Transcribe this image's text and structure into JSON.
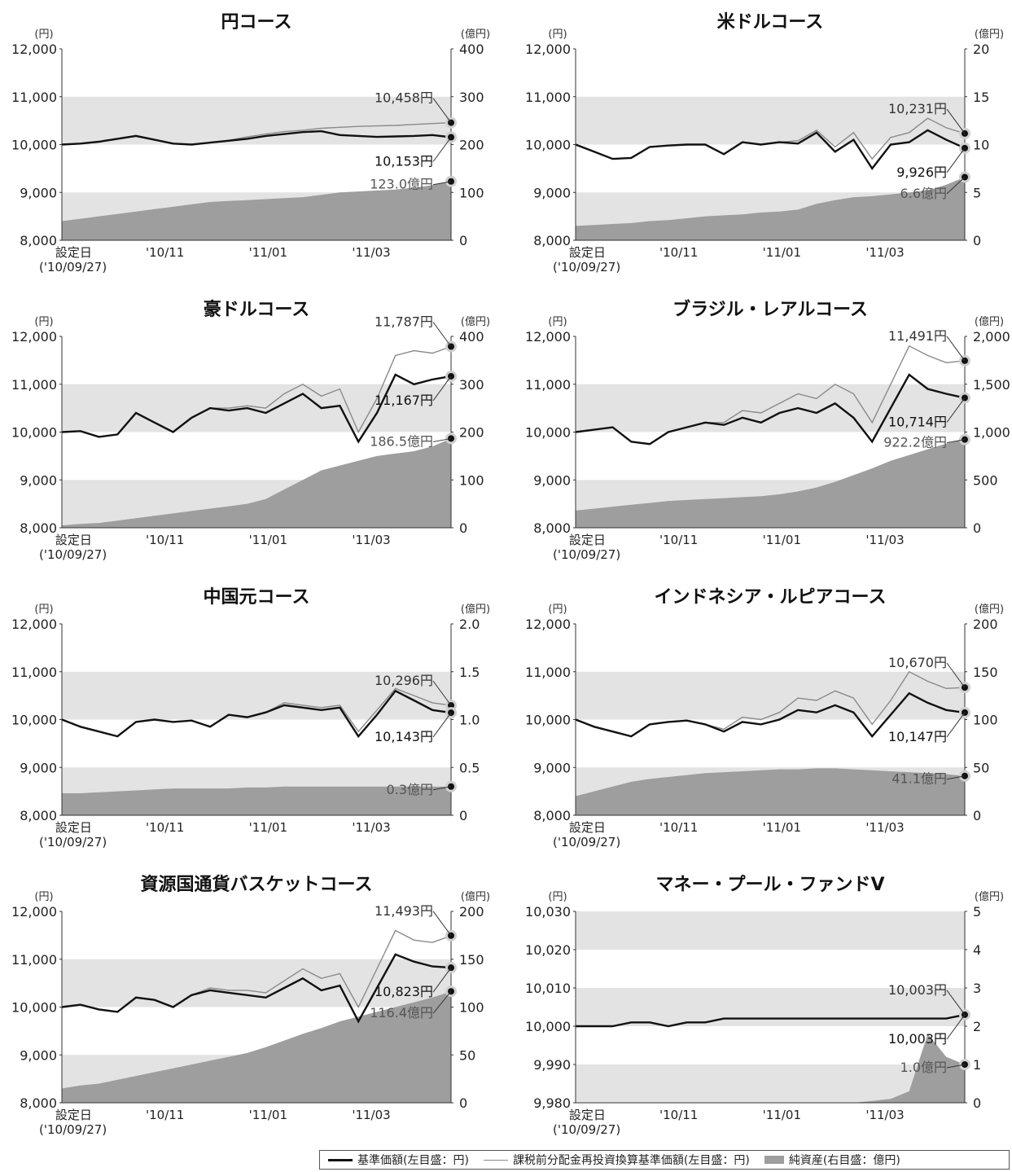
{
  "chart_data": [
    {
      "type": "line",
      "title": "円コース",
      "left_unit": "(円)",
      "right_unit": "(億円)",
      "y_left": {
        "min": 8000,
        "max": 12000,
        "ticks": [
          "8,000",
          "9,000",
          "10,000",
          "11,000",
          "12,000"
        ]
      },
      "y_right": {
        "min": 0,
        "max": 400,
        "ticks": [
          "0",
          "100",
          "200",
          "300",
          "400"
        ]
      },
      "x_labels": [
        "設定日",
        "'10/11",
        "'11/01",
        "'11/03"
      ],
      "x_sublabel": "('10/09/27)",
      "series": [
        {
          "key": "nav",
          "values": [
            10000,
            10020,
            10060,
            10120,
            10180,
            10100,
            10020,
            10000,
            10040,
            10080,
            10120,
            10180,
            10220,
            10260,
            10280,
            10200,
            10180,
            10160,
            10170,
            10180,
            10200,
            10153
          ]
        },
        {
          "key": "reinvest",
          "values": [
            10000,
            10020,
            10060,
            10120,
            10180,
            10100,
            10020,
            10000,
            10040,
            10090,
            10160,
            10220,
            10270,
            10300,
            10340,
            10360,
            10380,
            10390,
            10400,
            10420,
            10440,
            10458
          ]
        },
        {
          "key": "assets",
          "values": [
            40,
            45,
            50,
            55,
            60,
            65,
            70,
            75,
            80,
            82,
            84,
            86,
            88,
            90,
            95,
            100,
            102,
            104,
            106,
            110,
            115,
            123
          ]
        }
      ],
      "labels": {
        "reinvest": "10,458円",
        "nav": "10,153円",
        "assets": "123.0億円"
      }
    },
    {
      "type": "line",
      "title": "米ドルコース",
      "left_unit": "(円)",
      "right_unit": "(億円)",
      "y_left": {
        "min": 8000,
        "max": 12000,
        "ticks": [
          "8,000",
          "9,000",
          "10,000",
          "11,000",
          "12,000"
        ]
      },
      "y_right": {
        "min": 0,
        "max": 20,
        "ticks": [
          "0",
          "5",
          "10",
          "15",
          "20"
        ]
      },
      "x_labels": [
        "設定日",
        "'10/11",
        "'11/01",
        "'11/03"
      ],
      "x_sublabel": "('10/09/27)",
      "series": [
        {
          "key": "nav",
          "values": [
            10000,
            9850,
            9700,
            9720,
            9950,
            9980,
            10000,
            10000,
            9800,
            10050,
            10000,
            10050,
            10020,
            10250,
            9850,
            10100,
            9500,
            10000,
            10050,
            10300,
            10100,
            9926
          ]
        },
        {
          "key": "reinvest",
          "values": [
            10000,
            9850,
            9700,
            9720,
            9950,
            9980,
            10000,
            10000,
            9800,
            10050,
            10000,
            10050,
            10080,
            10300,
            9950,
            10250,
            9700,
            10150,
            10250,
            10550,
            10350,
            10231
          ]
        },
        {
          "key": "assets",
          "values": [
            1.5,
            1.6,
            1.7,
            1.8,
            2,
            2.1,
            2.3,
            2.5,
            2.6,
            2.7,
            2.9,
            3,
            3.2,
            3.8,
            4.2,
            4.5,
            4.6,
            4.8,
            5,
            5.2,
            5.8,
            6.6
          ]
        }
      ],
      "labels": {
        "reinvest": "10,231円",
        "nav": "9,926円",
        "assets": "6.6億円"
      }
    },
    {
      "type": "line",
      "title": "豪ドルコース",
      "left_unit": "(円)",
      "right_unit": "(億円)",
      "y_left": {
        "min": 8000,
        "max": 12000,
        "ticks": [
          "8,000",
          "9,000",
          "10,000",
          "11,000",
          "12,000"
        ]
      },
      "y_right": {
        "min": 0,
        "max": 400,
        "ticks": [
          "0",
          "100",
          "200",
          "300",
          "400"
        ]
      },
      "x_labels": [
        "設定日",
        "'10/11",
        "'11/01",
        "'11/03"
      ],
      "x_sublabel": "('10/09/27)",
      "series": [
        {
          "key": "nav",
          "values": [
            10000,
            10020,
            9900,
            9950,
            10400,
            10200,
            10000,
            10300,
            10500,
            10450,
            10500,
            10400,
            10600,
            10800,
            10500,
            10550,
            9800,
            10400,
            11200,
            11000,
            11100,
            11167
          ]
        },
        {
          "key": "reinvest",
          "values": [
            10000,
            10020,
            9900,
            9950,
            10400,
            10200,
            10000,
            10300,
            10500,
            10500,
            10550,
            10500,
            10800,
            11000,
            10750,
            10900,
            10000,
            10700,
            11600,
            11700,
            11650,
            11787
          ]
        },
        {
          "key": "assets",
          "values": [
            5,
            8,
            10,
            15,
            20,
            25,
            30,
            35,
            40,
            45,
            50,
            60,
            80,
            100,
            120,
            130,
            140,
            150,
            155,
            160,
            170,
            186.5
          ]
        }
      ],
      "labels": {
        "reinvest": "11,787円",
        "nav": "11,167円",
        "assets": "186.5億円"
      }
    },
    {
      "type": "line",
      "title": "ブラジル・レアルコース",
      "left_unit": "(円)",
      "right_unit": "(億円)",
      "y_left": {
        "min": 8000,
        "max": 12000,
        "ticks": [
          "8,000",
          "9,000",
          "10,000",
          "11,000",
          "12,000"
        ]
      },
      "y_right": {
        "min": 0,
        "max": 2000,
        "ticks": [
          "0",
          "500",
          "1,000",
          "1,500",
          "2,000"
        ]
      },
      "x_labels": [
        "設定日",
        "'10/11",
        "'11/01",
        "'11/03"
      ],
      "x_sublabel": "('10/09/27)",
      "series": [
        {
          "key": "nav",
          "values": [
            10000,
            10050,
            10100,
            9800,
            9750,
            10000,
            10100,
            10200,
            10150,
            10300,
            10200,
            10400,
            10500,
            10400,
            10600,
            10300,
            9800,
            10500,
            11200,
            10900,
            10800,
            10714
          ]
        },
        {
          "key": "reinvest",
          "values": [
            10000,
            10050,
            10100,
            9800,
            9750,
            10000,
            10100,
            10200,
            10200,
            10450,
            10400,
            10600,
            10800,
            10700,
            11000,
            10800,
            10200,
            11000,
            11800,
            11600,
            11450,
            11491
          ]
        },
        {
          "key": "assets",
          "values": [
            180,
            200,
            220,
            240,
            260,
            280,
            290,
            300,
            310,
            320,
            330,
            350,
            380,
            420,
            480,
            550,
            620,
            700,
            760,
            820,
            880,
            922.2
          ]
        }
      ],
      "labels": {
        "reinvest": "11,491円",
        "nav": "10,714円",
        "assets": "922.2億円"
      }
    },
    {
      "type": "line",
      "title": "中国元コース",
      "left_unit": "(円)",
      "right_unit": "(億円)",
      "y_left": {
        "min": 8000,
        "max": 12000,
        "ticks": [
          "8,000",
          "9,000",
          "10,000",
          "11,000",
          "12,000"
        ]
      },
      "y_right": {
        "min": 0,
        "max": 2,
        "ticks": [
          "0",
          "0.5",
          "1.0",
          "1.5",
          "2.0"
        ]
      },
      "x_labels": [
        "設定日",
        "'10/11",
        "'11/01",
        "'11/03"
      ],
      "x_sublabel": "('10/09/27)",
      "series": [
        {
          "key": "nav",
          "values": [
            10000,
            9850,
            9750,
            9650,
            9950,
            10000,
            9950,
            9980,
            9850,
            10100,
            10050,
            10150,
            10300,
            10250,
            10200,
            10250,
            9650,
            10100,
            10600,
            10400,
            10200,
            10143
          ]
        },
        {
          "key": "reinvest",
          "values": [
            10000,
            9850,
            9750,
            9650,
            9950,
            10000,
            9950,
            9980,
            9850,
            10100,
            10050,
            10150,
            10350,
            10300,
            10250,
            10300,
            9750,
            10200,
            10650,
            10500,
            10350,
            10296
          ]
        },
        {
          "key": "assets",
          "values": [
            0.23,
            0.23,
            0.24,
            0.25,
            0.26,
            0.27,
            0.28,
            0.28,
            0.28,
            0.28,
            0.29,
            0.29,
            0.3,
            0.3,
            0.3,
            0.3,
            0.3,
            0.3,
            0.3,
            0.3,
            0.3,
            0.3
          ]
        }
      ],
      "labels": {
        "reinvest": "10,296円",
        "nav": "10,143円",
        "assets": "0.3億円"
      }
    },
    {
      "type": "line",
      "title": "インドネシア・ルピアコース",
      "left_unit": "(円)",
      "right_unit": "(億円)",
      "y_left": {
        "min": 8000,
        "max": 12000,
        "ticks": [
          "8,000",
          "9,000",
          "10,000",
          "11,000",
          "12,000"
        ]
      },
      "y_right": {
        "min": 0,
        "max": 200,
        "ticks": [
          "0",
          "50",
          "100",
          "150",
          "200"
        ]
      },
      "x_labels": [
        "設定日",
        "'10/11",
        "'11/01",
        "'11/03"
      ],
      "x_sublabel": "('10/09/27)",
      "series": [
        {
          "key": "nav",
          "values": [
            10000,
            9850,
            9750,
            9650,
            9900,
            9950,
            9980,
            9900,
            9750,
            9950,
            9900,
            10000,
            10200,
            10150,
            10300,
            10150,
            9650,
            10100,
            10550,
            10350,
            10200,
            10147
          ]
        },
        {
          "key": "reinvest",
          "values": [
            10000,
            9850,
            9750,
            9650,
            9900,
            9950,
            9980,
            9900,
            9800,
            10050,
            10000,
            10150,
            10450,
            10400,
            10600,
            10450,
            9900,
            10400,
            11000,
            10800,
            10650,
            10670
          ]
        },
        {
          "key": "assets",
          "values": [
            20,
            25,
            30,
            35,
            38,
            40,
            42,
            44,
            45,
            46,
            47,
            48,
            48,
            49,
            49,
            48,
            47,
            46,
            45,
            44,
            43,
            41.1
          ]
        }
      ],
      "labels": {
        "reinvest": "10,670円",
        "nav": "10,147円",
        "assets": "41.1億円"
      }
    },
    {
      "type": "line",
      "title": "資源国通貨バスケットコース",
      "left_unit": "(円)",
      "right_unit": "(億円)",
      "y_left": {
        "min": 8000,
        "max": 12000,
        "ticks": [
          "8,000",
          "9,000",
          "10,000",
          "11,000",
          "12,000"
        ]
      },
      "y_right": {
        "min": 0,
        "max": 200,
        "ticks": [
          "0",
          "50",
          "100",
          "150",
          "200"
        ]
      },
      "x_labels": [
        "設定日",
        "'10/11",
        "'11/01",
        "'11/03"
      ],
      "x_sublabel": "('10/09/27)",
      "series": [
        {
          "key": "nav",
          "values": [
            10000,
            10050,
            9950,
            9900,
            10200,
            10150,
            10000,
            10250,
            10350,
            10300,
            10250,
            10200,
            10400,
            10600,
            10350,
            10450,
            9700,
            10400,
            11100,
            10950,
            10850,
            10823
          ]
        },
        {
          "key": "reinvest",
          "values": [
            10000,
            10050,
            9950,
            9900,
            10200,
            10150,
            10000,
            10250,
            10400,
            10350,
            10350,
            10300,
            10550,
            10800,
            10600,
            10700,
            10000,
            10800,
            11600,
            11400,
            11350,
            11493
          ]
        },
        {
          "key": "assets",
          "values": [
            15,
            18,
            20,
            24,
            28,
            32,
            36,
            40,
            44,
            48,
            52,
            58,
            65,
            72,
            78,
            85,
            90,
            95,
            100,
            105,
            110,
            116.4
          ]
        }
      ],
      "labels": {
        "reinvest": "11,493円",
        "nav": "10,823円",
        "assets": "116.4億円"
      }
    },
    {
      "type": "line",
      "title": "マネー・プール・ファンドV",
      "left_unit": "(円)",
      "right_unit": "(億円)",
      "y_left": {
        "min": 9980,
        "max": 10030,
        "ticks": [
          "9,980",
          "9,990",
          "10,000",
          "10,010",
          "10,020",
          "10,030"
        ]
      },
      "y_right": {
        "min": 0,
        "max": 5,
        "ticks": [
          "0",
          "1",
          "2",
          "3",
          "4",
          "5"
        ]
      },
      "x_labels": [
        "設定日",
        "'10/11",
        "'11/01",
        "'11/03"
      ],
      "x_sublabel": "('10/09/27)",
      "series": [
        {
          "key": "nav",
          "values": [
            10000,
            10000,
            10000,
            10001,
            10001,
            10000,
            10001,
            10001,
            10002,
            10002,
            10002,
            10002,
            10002,
            10002,
            10002,
            10002,
            10002,
            10002,
            10002,
            10002,
            10002,
            10003
          ]
        },
        {
          "key": "reinvest",
          "values": [
            10000,
            10000,
            10000,
            10001,
            10001,
            10000,
            10001,
            10001,
            10002,
            10002,
            10002,
            10002,
            10002,
            10002,
            10002,
            10002,
            10002,
            10002,
            10002,
            10002,
            10002,
            10003
          ]
        },
        {
          "key": "assets",
          "values": [
            0,
            0,
            0,
            0,
            0,
            0,
            0,
            0,
            0,
            0,
            0,
            0,
            0,
            0,
            0,
            0,
            0.05,
            0.1,
            0.3,
            1.8,
            1.2,
            1.0
          ]
        }
      ],
      "labels": {
        "reinvest": "10,003円",
        "nav": "10,003円",
        "assets": "1.0億円"
      }
    }
  ],
  "legend": {
    "nav": "基準価額(左目盛：円)",
    "reinvest": "課税前分配金再投資換算基準価額(左目盛：円)",
    "assets": "純資産(右目盛：億円)"
  },
  "colors": {
    "nav": "#111111",
    "reinvest": "#8a8a8a",
    "assets": "#9e9e9e",
    "band": "#e3e3e3"
  }
}
